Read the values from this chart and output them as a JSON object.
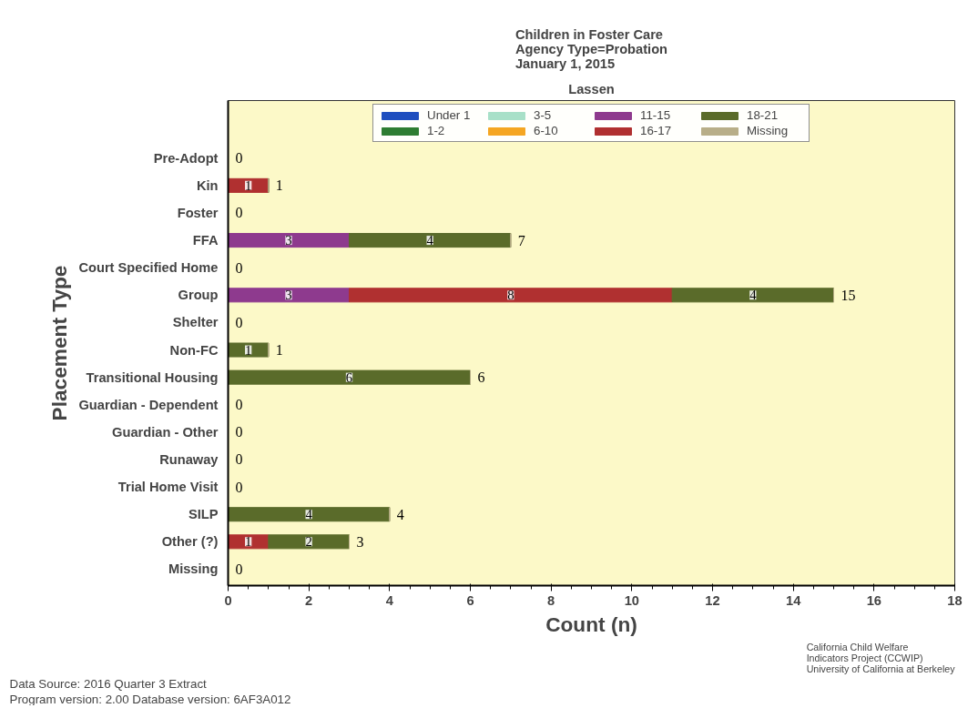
{
  "chart_data": {
    "type": "bar",
    "orientation": "horizontal",
    "stacked": true,
    "title": "Children in Foster Care\nAgency Type=Probation\nJanuary 1, 2015",
    "subtitle": "Lassen",
    "xlabel": "Count (n)",
    "ylabel": "Placement Type",
    "categories": [
      "Pre-Adopt",
      "Kin",
      "Foster",
      "FFA",
      "Court Specified Home",
      "Group",
      "Shelter",
      "Non-FC",
      "Transitional Housing",
      "Guardian - Dependent",
      "Guardian - Other",
      "Runaway",
      "Trial Home Visit",
      "SILP",
      "Other (?)",
      "Missing"
    ],
    "series": [
      {
        "name": "Under 1",
        "color": "#1f4fbf",
        "values": [
          0,
          0,
          0,
          0,
          0,
          0,
          0,
          0,
          0,
          0,
          0,
          0,
          0,
          0,
          0,
          0
        ],
        "value_labels": [
          null,
          null,
          null,
          null,
          null,
          null,
          null,
          null,
          null,
          null,
          null,
          null,
          null,
          null,
          null,
          null
        ]
      },
      {
        "name": "1-2",
        "color": "#2e7d32",
        "values": [
          0,
          0,
          0,
          0,
          0,
          0,
          0,
          0,
          0,
          0,
          0,
          0,
          0,
          0,
          0,
          0
        ],
        "value_labels": [
          null,
          null,
          null,
          null,
          null,
          null,
          null,
          null,
          null,
          null,
          null,
          null,
          null,
          null,
          null,
          null
        ]
      },
      {
        "name": "3-5",
        "color": "#a8e0c8",
        "values": [
          0,
          0,
          0,
          0,
          0,
          0,
          0,
          0,
          0,
          0,
          0,
          0,
          0,
          0,
          0,
          0
        ],
        "value_labels": [
          null,
          null,
          null,
          null,
          null,
          null,
          null,
          null,
          null,
          null,
          null,
          null,
          null,
          null,
          null,
          null
        ]
      },
      {
        "name": "6-10",
        "color": "#f5a623",
        "values": [
          0,
          0,
          0,
          0,
          0,
          0,
          0,
          0,
          0,
          0,
          0,
          0,
          0,
          0,
          0,
          0
        ],
        "value_labels": [
          null,
          null,
          null,
          null,
          null,
          null,
          null,
          null,
          null,
          null,
          null,
          null,
          null,
          null,
          null,
          null
        ]
      },
      {
        "name": "11-15",
        "color": "#8e3a8e",
        "values": [
          0,
          0,
          0,
          3,
          0,
          3,
          0,
          0,
          0,
          0,
          0,
          0,
          0,
          0,
          0,
          0
        ],
        "value_labels": [
          null,
          null,
          null,
          "3",
          null,
          "3",
          null,
          null,
          null,
          null,
          null,
          null,
          null,
          null,
          null,
          null
        ]
      },
      {
        "name": "16-17",
        "color": "#b03030",
        "values": [
          0,
          1,
          0,
          0,
          0,
          8,
          0,
          0,
          0,
          0,
          0,
          0,
          0,
          0,
          1,
          0
        ],
        "value_labels": [
          null,
          "1",
          null,
          null,
          null,
          "8",
          null,
          null,
          null,
          null,
          null,
          null,
          null,
          null,
          "1",
          null
        ]
      },
      {
        "name": "18-21",
        "color": "#5a6b2a",
        "values": [
          0,
          0,
          0,
          4,
          0,
          4,
          0,
          1,
          6,
          0,
          0,
          0,
          0,
          4,
          2,
          0
        ],
        "value_labels": [
          null,
          null,
          null,
          "4",
          null,
          "4",
          null,
          "1",
          "6",
          null,
          null,
          null,
          null,
          "4",
          "2",
          null
        ]
      },
      {
        "name": "Missing",
        "color": "#b8ae88",
        "values": [
          0,
          0,
          0,
          0,
          0,
          0,
          0,
          0,
          0,
          0,
          0,
          0,
          0,
          0,
          0,
          0
        ],
        "value_labels": [
          null,
          null,
          null,
          null,
          null,
          null,
          null,
          null,
          null,
          null,
          null,
          null,
          null,
          null,
          null,
          null
        ]
      }
    ],
    "totals": [
      "0",
      "1",
      "0",
      "7",
      "0",
      "15",
      "0",
      "1",
      "6",
      "0",
      "0",
      "0",
      "0",
      "4",
      "3",
      "0"
    ],
    "xlim": [
      0,
      18
    ],
    "xticks": [
      0,
      2,
      4,
      6,
      8,
      10,
      12,
      14,
      16,
      18
    ],
    "grid": false,
    "legend": "top",
    "annotations": [
      "Data Source: 2016 Quarter 3 Extract",
      "Program version: 2.00 Database version: 6AF3A012",
      "California Child Welfare\nIndicators Project (CCWIP)\nUniversity of California at Berkeley"
    ]
  }
}
